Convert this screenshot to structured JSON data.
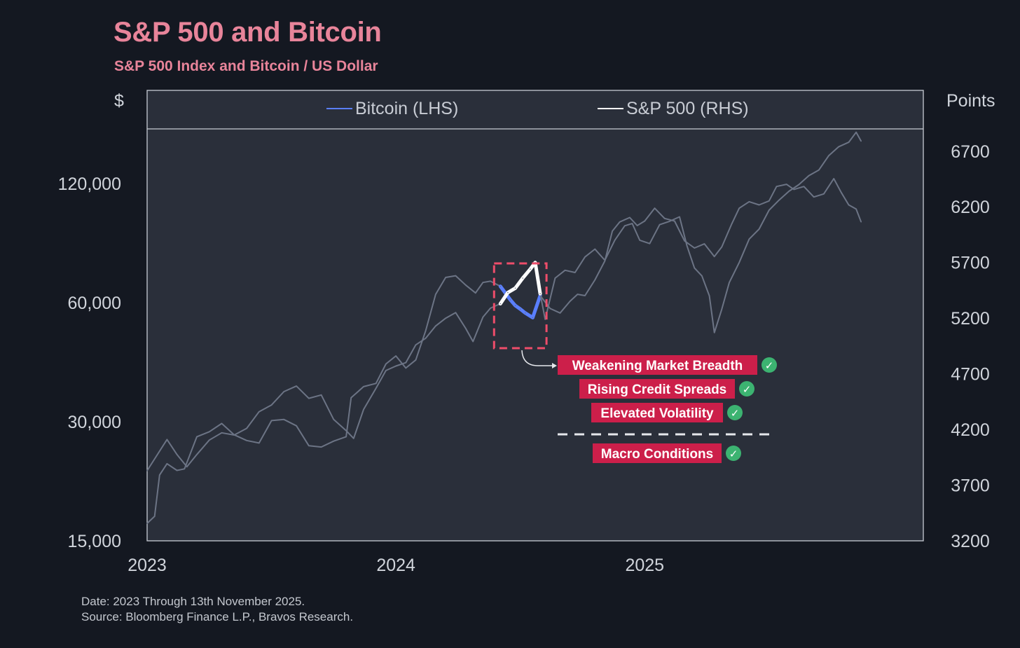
{
  "header": {
    "title": "S&P 500 and Bitcoin",
    "subtitle": "S&P 500 Index and Bitcoin / US Dollar"
  },
  "footer": {
    "date_note": "Date: 2023 Through 13th November 2025.",
    "source_note": "Source: Bloomberg Finance L.P., Bravos Research."
  },
  "colors": {
    "background": "#141821",
    "plot_background": "#2a2f3a",
    "title": "#e8849a",
    "bitcoin": "#5a7fff",
    "sp500": "#ffffff",
    "faded_line": "#6c7485",
    "annotation_box": "#cc1f4a",
    "check": "#3cb371",
    "highlight_border": "#ee4d6a"
  },
  "chart_data": {
    "type": "line",
    "title": "S&P 500 and Bitcoin",
    "subtitle": "S&P 500 Index and Bitcoin / US Dollar",
    "y_left_label": "$",
    "y_right_label": "Points",
    "y_left_scale": "log",
    "y_left_ticks": [
      "15,000",
      "30,000",
      "60,000",
      "120,000"
    ],
    "y_left_tick_values": [
      15000,
      30000,
      60000,
      120000
    ],
    "y_left_range": [
      15000,
      165000
    ],
    "y_right_ticks": [
      "3200",
      "3700",
      "4200",
      "4700",
      "5200",
      "5700",
      "6200",
      "6700"
    ],
    "y_right_tick_values": [
      3200,
      3700,
      4200,
      4700,
      5200,
      5700,
      6200,
      6700
    ],
    "y_right_range": [
      3200,
      6900
    ],
    "x_ticks": [
      "2023",
      "2024",
      "2025"
    ],
    "x_tick_values": [
      2023.0,
      2024.0,
      2025.0
    ],
    "x_range": [
      2023.0,
      2026.12
    ],
    "legend": {
      "placement": "top",
      "entries": [
        "Bitcoin (LHS)",
        "S&P 500 (RHS)"
      ]
    },
    "highlight_range": [
      2024.42,
      2024.58
    ],
    "series": [
      {
        "name": "Bitcoin (LHS)",
        "axis": "left",
        "points": [
          [
            2023.0,
            16600
          ],
          [
            2023.03,
            17300
          ],
          [
            2023.05,
            22000
          ],
          [
            2023.08,
            23500
          ],
          [
            2023.12,
            22600
          ],
          [
            2023.15,
            22800
          ],
          [
            2023.2,
            27500
          ],
          [
            2023.25,
            28300
          ],
          [
            2023.3,
            29700
          ],
          [
            2023.35,
            27800
          ],
          [
            2023.4,
            26900
          ],
          [
            2023.45,
            26500
          ],
          [
            2023.5,
            30200
          ],
          [
            2023.55,
            30400
          ],
          [
            2023.6,
            29300
          ],
          [
            2023.65,
            26100
          ],
          [
            2023.7,
            25900
          ],
          [
            2023.75,
            26800
          ],
          [
            2023.8,
            27500
          ],
          [
            2023.82,
            34500
          ],
          [
            2023.87,
            36800
          ],
          [
            2023.92,
            37500
          ],
          [
            2023.96,
            42000
          ],
          [
            2024.0,
            44000
          ],
          [
            2024.04,
            41000
          ],
          [
            2024.08,
            43000
          ],
          [
            2024.12,
            51000
          ],
          [
            2024.16,
            63000
          ],
          [
            2024.2,
            69500
          ],
          [
            2024.24,
            70200
          ],
          [
            2024.28,
            66500
          ],
          [
            2024.32,
            63500
          ],
          [
            2024.35,
            67500
          ],
          [
            2024.38,
            68000
          ],
          [
            2024.42,
            66000
          ],
          [
            2024.44,
            63500
          ],
          [
            2024.46,
            61000
          ],
          [
            2024.48,
            59000
          ],
          [
            2024.5,
            57800
          ],
          [
            2024.52,
            56500
          ],
          [
            2024.55,
            55000
          ],
          [
            2024.58,
            62500
          ],
          [
            2024.62,
            58000
          ],
          [
            2024.66,
            56500
          ],
          [
            2024.7,
            60500
          ],
          [
            2024.73,
            63000
          ],
          [
            2024.76,
            62500
          ],
          [
            2024.8,
            68500
          ],
          [
            2024.84,
            76500
          ],
          [
            2024.87,
            91000
          ],
          [
            2024.9,
            96000
          ],
          [
            2024.94,
            98500
          ],
          [
            2024.97,
            94000
          ],
          [
            2025.0,
            96500
          ],
          [
            2025.04,
            104000
          ],
          [
            2025.08,
            98000
          ],
          [
            2025.12,
            96500
          ],
          [
            2025.16,
            86000
          ],
          [
            2025.2,
            82500
          ],
          [
            2025.24,
            84500
          ],
          [
            2025.28,
            78500
          ],
          [
            2025.31,
            83000
          ],
          [
            2025.35,
            95000
          ],
          [
            2025.38,
            104000
          ],
          [
            2025.42,
            108000
          ],
          [
            2025.46,
            106000
          ],
          [
            2025.5,
            108500
          ],
          [
            2025.53,
            118000
          ],
          [
            2025.57,
            119500
          ],
          [
            2025.6,
            116000
          ],
          [
            2025.64,
            118000
          ],
          [
            2025.68,
            111000
          ],
          [
            2025.72,
            113000
          ],
          [
            2025.76,
            123500
          ],
          [
            2025.79,
            114000
          ],
          [
            2025.82,
            106000
          ],
          [
            2025.85,
            103500
          ],
          [
            2025.87,
            96000
          ]
        ]
      },
      {
        "name": "S&P 500 (RHS)",
        "axis": "right",
        "points": [
          [
            2023.0,
            3830
          ],
          [
            2023.04,
            3970
          ],
          [
            2023.08,
            4110
          ],
          [
            2023.12,
            3975
          ],
          [
            2023.16,
            3865
          ],
          [
            2023.2,
            3975
          ],
          [
            2023.25,
            4105
          ],
          [
            2023.3,
            4170
          ],
          [
            2023.35,
            4150
          ],
          [
            2023.4,
            4210
          ],
          [
            2023.45,
            4360
          ],
          [
            2023.5,
            4420
          ],
          [
            2023.55,
            4540
          ],
          [
            2023.6,
            4590
          ],
          [
            2023.65,
            4480
          ],
          [
            2023.7,
            4510
          ],
          [
            2023.75,
            4290
          ],
          [
            2023.8,
            4190
          ],
          [
            2023.83,
            4120
          ],
          [
            2023.87,
            4380
          ],
          [
            2023.92,
            4570
          ],
          [
            2023.96,
            4730
          ],
          [
            2024.0,
            4770
          ],
          [
            2024.04,
            4800
          ],
          [
            2024.08,
            4960
          ],
          [
            2024.12,
            5020
          ],
          [
            2024.16,
            5130
          ],
          [
            2024.2,
            5200
          ],
          [
            2024.24,
            5250
          ],
          [
            2024.28,
            5110
          ],
          [
            2024.31,
            4990
          ],
          [
            2024.35,
            5210
          ],
          [
            2024.38,
            5290
          ],
          [
            2024.42,
            5330
          ],
          [
            2024.45,
            5430
          ],
          [
            2024.48,
            5470
          ],
          [
            2024.51,
            5560
          ],
          [
            2024.54,
            5640
          ],
          [
            2024.56,
            5700
          ],
          [
            2024.58,
            5420
          ],
          [
            2024.6,
            5190
          ],
          [
            2024.64,
            5560
          ],
          [
            2024.68,
            5630
          ],
          [
            2024.72,
            5610
          ],
          [
            2024.76,
            5750
          ],
          [
            2024.8,
            5820
          ],
          [
            2024.84,
            5720
          ],
          [
            2024.88,
            5900
          ],
          [
            2024.92,
            6030
          ],
          [
            2024.95,
            6050
          ],
          [
            2024.98,
            5900
          ],
          [
            2025.02,
            5870
          ],
          [
            2025.06,
            6040
          ],
          [
            2025.1,
            6070
          ],
          [
            2025.14,
            6110
          ],
          [
            2025.17,
            5850
          ],
          [
            2025.2,
            5650
          ],
          [
            2025.23,
            5580
          ],
          [
            2025.26,
            5400
          ],
          [
            2025.28,
            5070
          ],
          [
            2025.31,
            5280
          ],
          [
            2025.34,
            5520
          ],
          [
            2025.38,
            5700
          ],
          [
            2025.42,
            5910
          ],
          [
            2025.46,
            6000
          ],
          [
            2025.5,
            6170
          ],
          [
            2025.54,
            6260
          ],
          [
            2025.58,
            6340
          ],
          [
            2025.62,
            6400
          ],
          [
            2025.66,
            6480
          ],
          [
            2025.7,
            6530
          ],
          [
            2025.74,
            6660
          ],
          [
            2025.78,
            6740
          ],
          [
            2025.82,
            6780
          ],
          [
            2025.85,
            6870
          ],
          [
            2025.87,
            6790
          ]
        ]
      }
    ],
    "annotations": [
      {
        "label": "Weakening Market Breadth",
        "checked": true
      },
      {
        "label": "Rising Credit Spreads",
        "checked": true
      },
      {
        "label": "Elevated Volatility",
        "checked": true
      },
      {
        "label": "Macro Conditions",
        "checked": true
      }
    ],
    "check_symbol": "✓"
  }
}
